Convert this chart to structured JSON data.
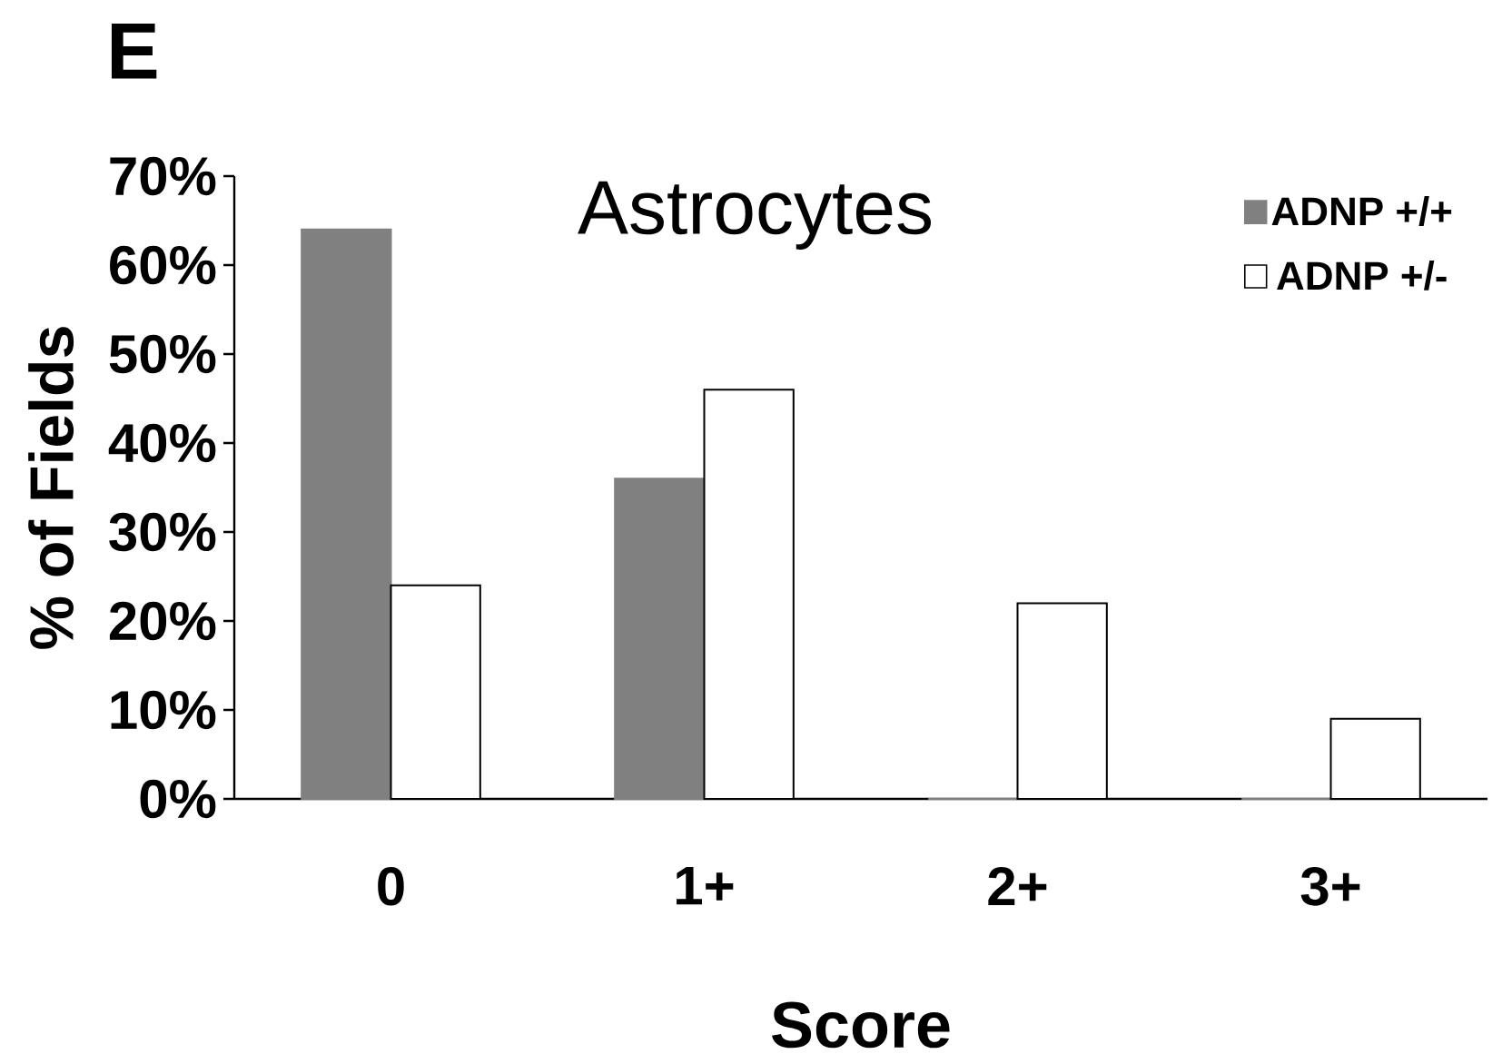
{
  "chart_data": {
    "type": "bar",
    "title": "Astrocytes",
    "xlabel": "Score",
    "ylabel": "% of Fields",
    "annotations": [
      "E"
    ],
    "categories": [
      "0",
      "1+",
      "2+",
      "3+"
    ],
    "series": [
      {
        "name": "ADNP +/+",
        "color": "#808080",
        "values": [
          64,
          36,
          0,
          0
        ]
      },
      {
        "name": "ADNP +/-",
        "color": "#ffffff",
        "values": [
          24,
          46,
          22,
          9
        ]
      }
    ],
    "ylim": [
      0,
      70
    ],
    "yticks": [
      {
        "value": 0,
        "label": "0%"
      },
      {
        "value": 10,
        "label": "10%"
      },
      {
        "value": 20,
        "label": "20%"
      },
      {
        "value": 30,
        "label": "30%"
      },
      {
        "value": 40,
        "label": "40%"
      },
      {
        "value": 50,
        "label": "50%"
      },
      {
        "value": 60,
        "label": "60%"
      },
      {
        "value": 70,
        "label": "70%"
      }
    ],
    "legend": "top right"
  }
}
